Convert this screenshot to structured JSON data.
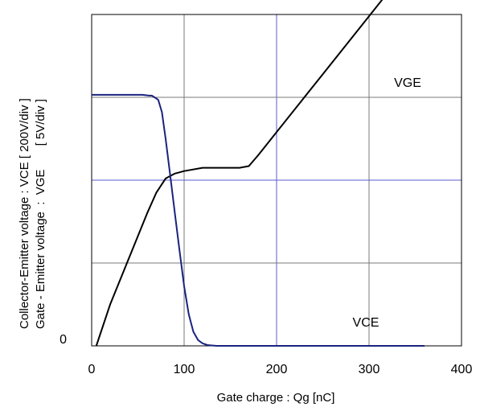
{
  "chart_data": {
    "type": "line",
    "xlabel": "Gate charge : Qg [nC]",
    "ylabel_lines": [
      "Collector-Emitter voltage : VCE [ 200V/div ]",
      "Gate - Emitter voltage  :  VGE       [ 5V/div ]"
    ],
    "x_ticks": [
      "0",
      "100",
      "200",
      "300",
      "400"
    ],
    "y_ticks": [
      "0"
    ],
    "xlim": [
      0,
      400
    ],
    "ylim_div": [
      0,
      4
    ],
    "grid": true,
    "colors": {
      "VGE": "#000000",
      "VCE": "#1a237e",
      "grid_x_major": "#5b5bcf",
      "grid_gray": "#7a7a7a"
    },
    "series": [
      {
        "name": "VGE",
        "label": "VGE",
        "x": [
          5,
          20,
          40,
          60,
          70,
          80,
          90,
          100,
          120,
          140,
          160,
          170,
          180,
          200,
          250,
          300,
          350,
          362
        ],
        "y": [
          0,
          0.5,
          1.05,
          1.6,
          1.85,
          2.02,
          2.08,
          2.11,
          2.15,
          2.15,
          2.15,
          2.17,
          2.3,
          2.58,
          3.28,
          3.98,
          4.68,
          4.85
        ]
      },
      {
        "name": "VCE",
        "label": "VCE",
        "x": [
          0,
          55,
          62,
          65,
          68,
          72,
          76,
          80,
          85,
          90,
          95,
          100,
          105,
          110,
          115,
          120,
          125,
          130,
          135,
          360
        ],
        "y": [
          3.03,
          3.03,
          3.02,
          3.02,
          3.0,
          2.97,
          2.82,
          2.5,
          2.05,
          1.6,
          1.15,
          0.72,
          0.38,
          0.17,
          0.07,
          0.03,
          0.01,
          0.005,
          0,
          0
        ]
      }
    ]
  }
}
